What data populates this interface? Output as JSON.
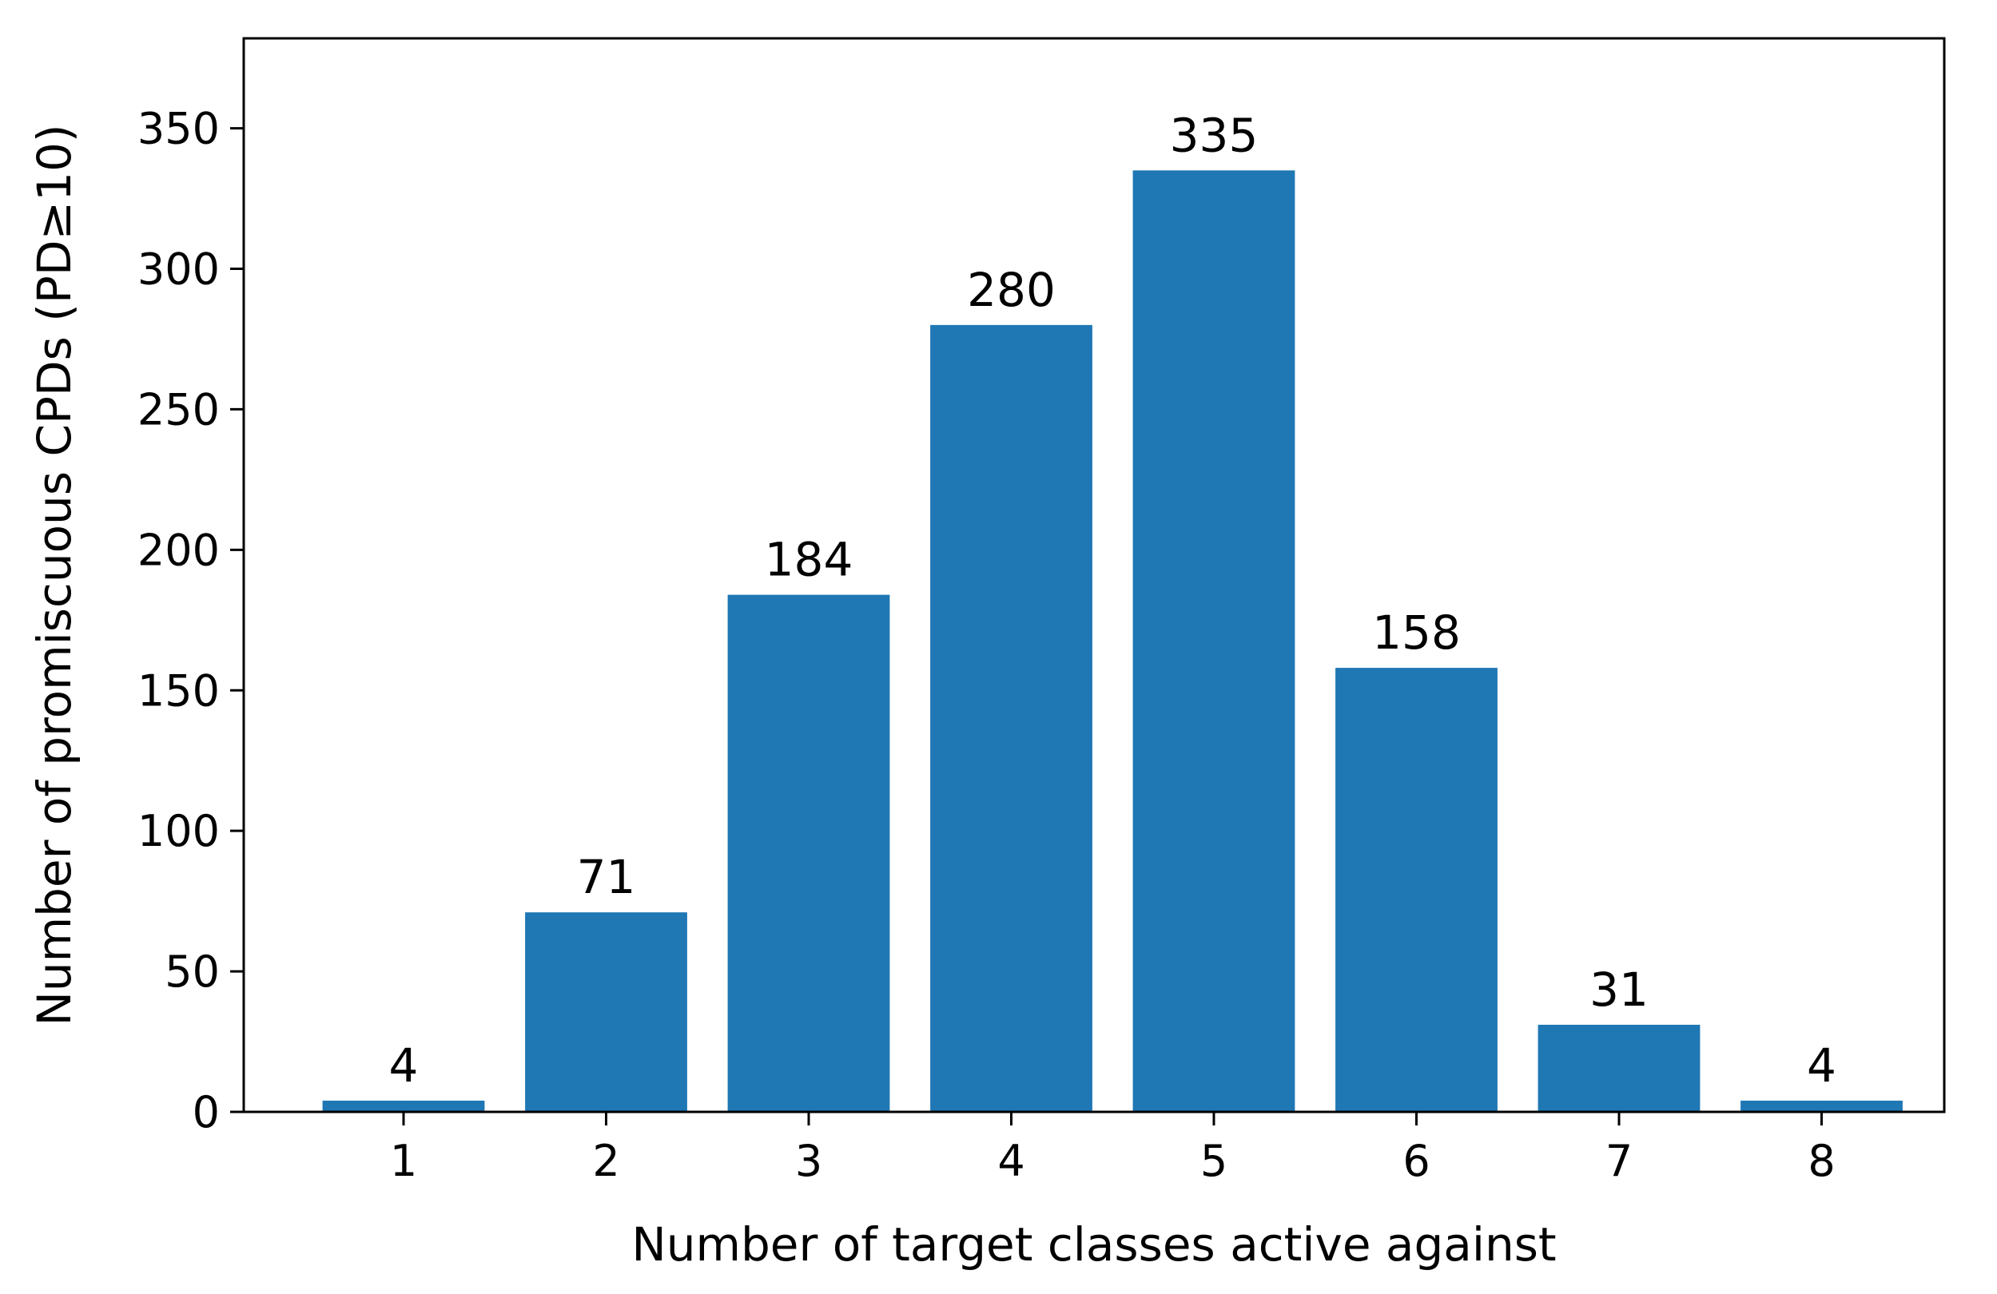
{
  "chart_data": {
    "type": "bar",
    "title": "",
    "xlabel": "Number of target classes active against",
    "ylabel": "Number of promiscuous CPDs (PD≥10)",
    "categories": [
      "1",
      "2",
      "3",
      "4",
      "5",
      "6",
      "7",
      "8"
    ],
    "values": [
      4,
      71,
      184,
      280,
      335,
      158,
      31,
      4
    ],
    "value_labels": [
      "4",
      "71",
      "184",
      "280",
      "335",
      "158",
      "31",
      "4"
    ],
    "ylim": [
      0,
      382
    ],
    "yticks": [
      0,
      50,
      100,
      150,
      200,
      250,
      300,
      350
    ],
    "ytick_labels": [
      "0",
      "50",
      "100",
      "150",
      "200",
      "250",
      "300",
      "350"
    ],
    "grid": false,
    "legend": "none",
    "bar_color": "#1f77b4"
  }
}
